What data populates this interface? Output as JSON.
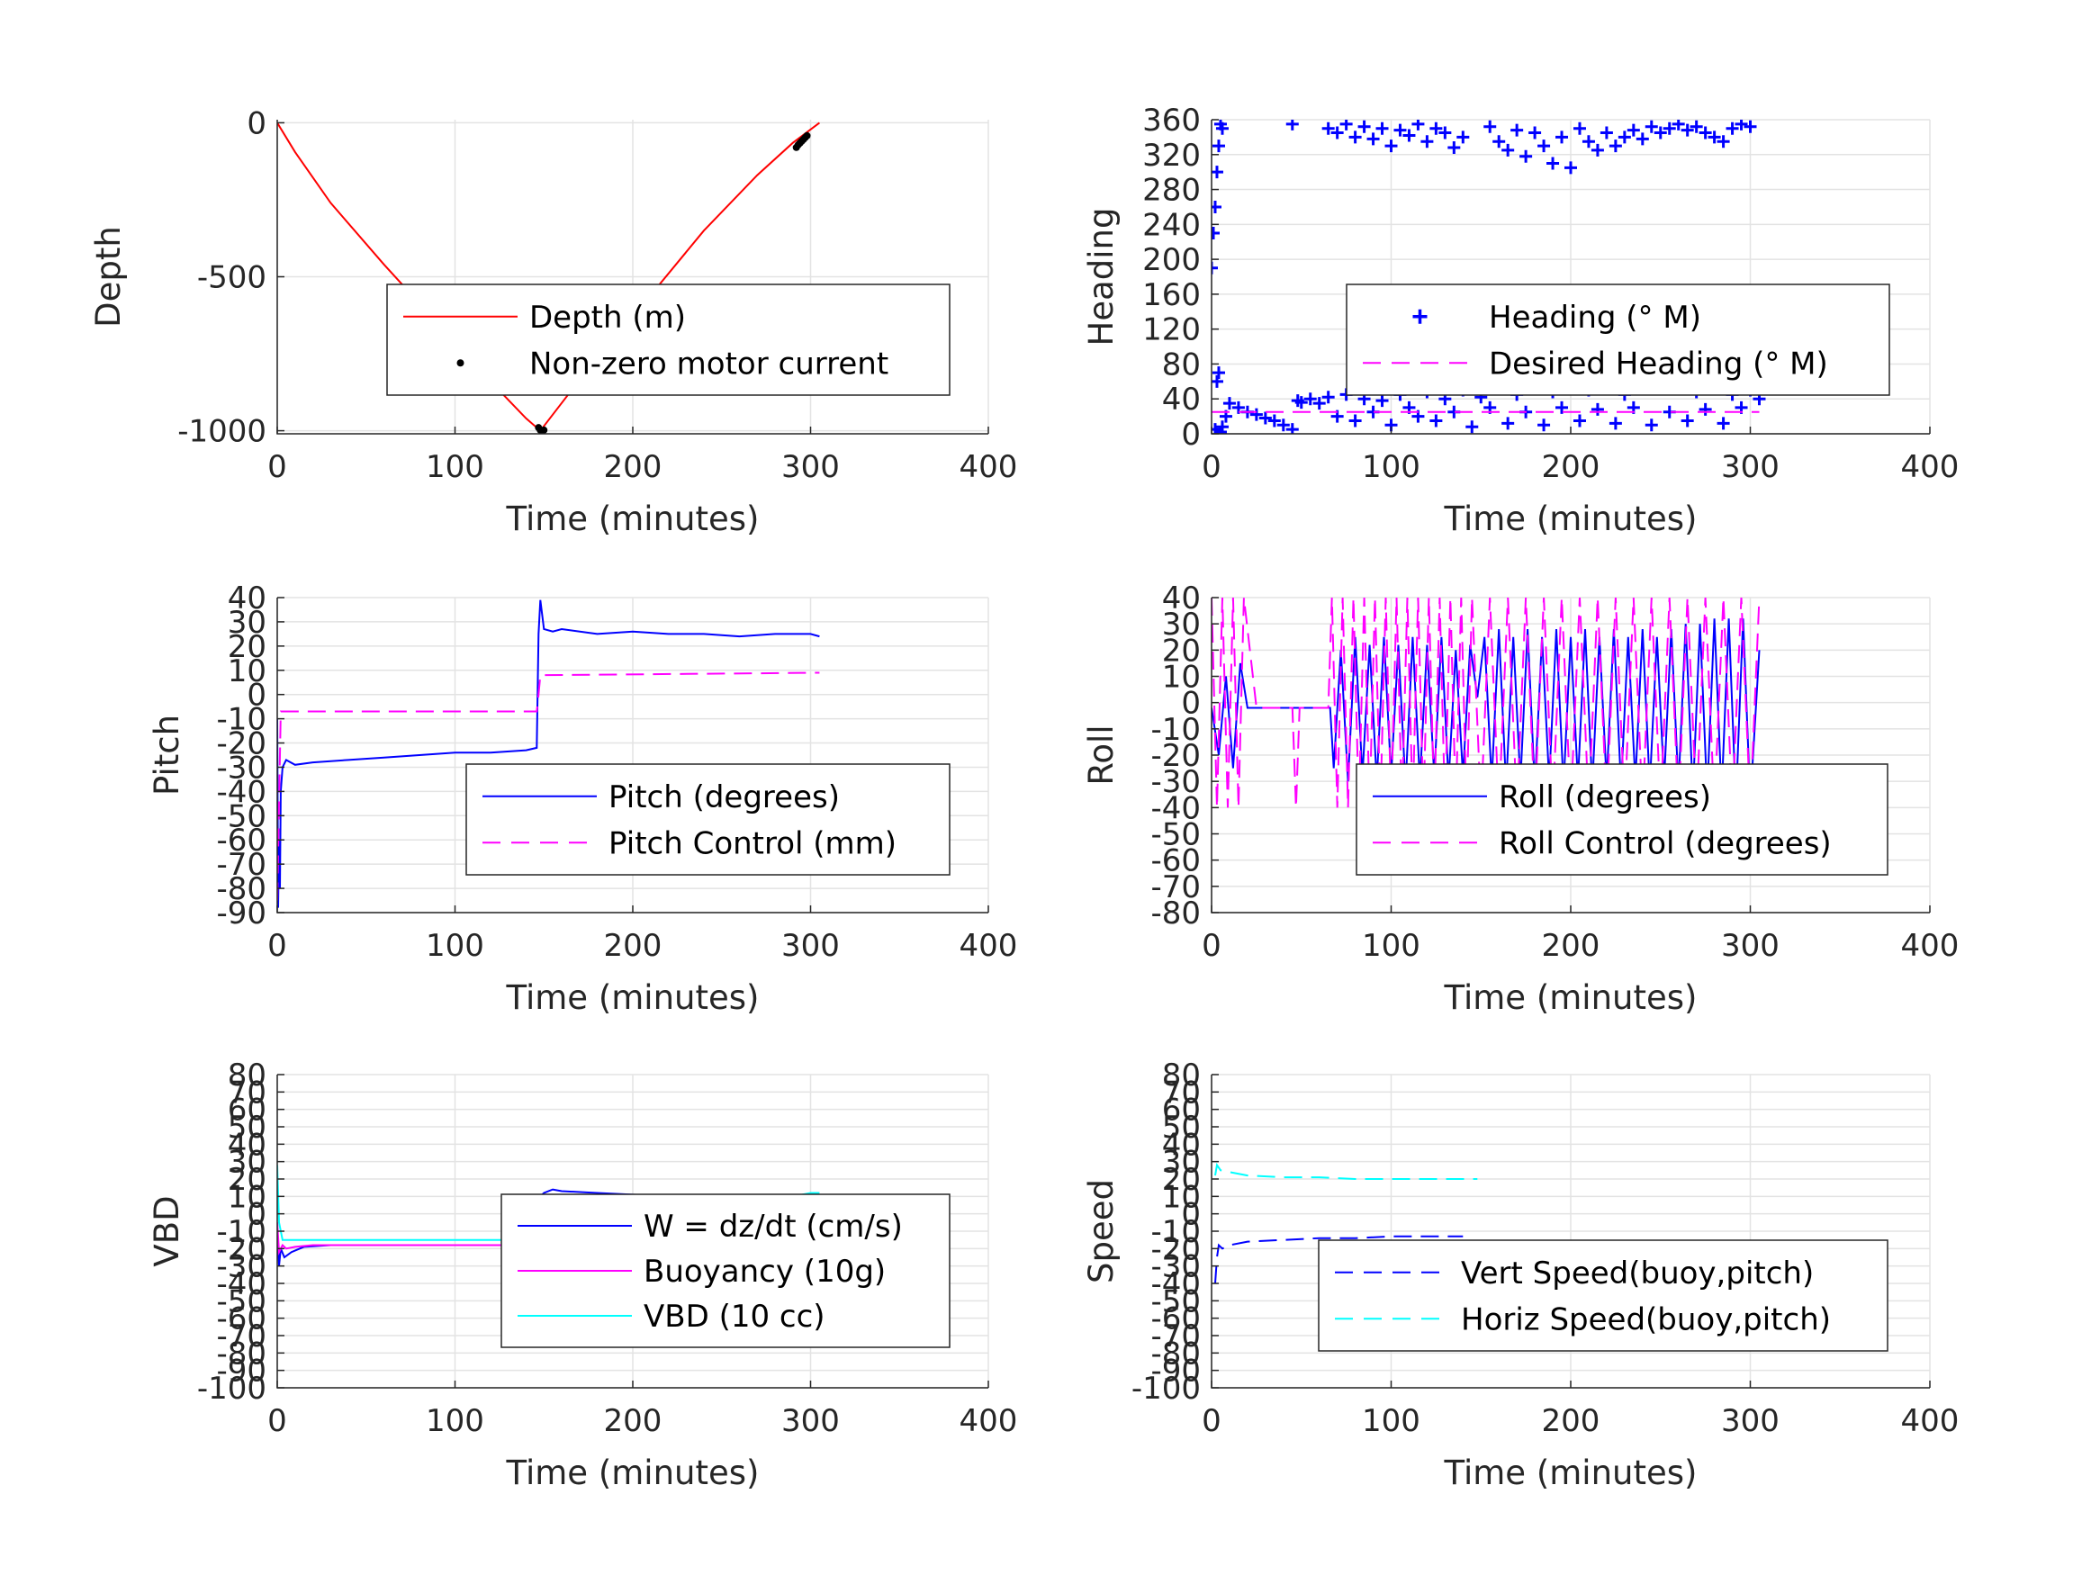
{
  "figure": {
    "background": "#ffffff",
    "grid_color": "#e3e3e3",
    "axis_color": "#262626"
  },
  "chart_data": [
    {
      "id": "depth",
      "type": "line",
      "xlabel": "Time (minutes)",
      "ylabel": "Depth",
      "xlim": [
        0,
        400
      ],
      "ylim": [
        -1010,
        10
      ],
      "xticks": [
        0,
        100,
        200,
        300,
        400
      ],
      "yticks": [
        -1000,
        -500,
        0
      ],
      "grid": true,
      "legend": {
        "placement": "lower-right"
      },
      "series": [
        {
          "name": "Depth (m)",
          "style": "line",
          "color": "#ff0000",
          "x": [
            0,
            10,
            30,
            60,
            90,
            120,
            140,
            148,
            160,
            180,
            210,
            240,
            270,
            290,
            305
          ],
          "y": [
            0,
            -95,
            -260,
            -460,
            -650,
            -840,
            -960,
            -1000,
            -910,
            -760,
            -560,
            -350,
            -170,
            -65,
            0
          ]
        },
        {
          "name": "Non-zero motor current",
          "style": "dots",
          "color": "#000000",
          "x": [
            147,
            148,
            149,
            150,
            292,
            293,
            294,
            295,
            296,
            297,
            298
          ],
          "y": [
            -990,
            -998,
            -1000,
            -998,
            -80,
            -72,
            -66,
            -60,
            -54,
            -48,
            -42
          ]
        }
      ]
    },
    {
      "id": "heading",
      "type": "scatter",
      "xlabel": "Time (minutes)",
      "ylabel": "Heading",
      "xlim": [
        0,
        400
      ],
      "ylim": [
        0,
        360
      ],
      "xticks": [
        0,
        100,
        200,
        300,
        400
      ],
      "yticks": [
        0,
        40,
        80,
        120,
        160,
        200,
        240,
        280,
        320,
        360
      ],
      "grid": true,
      "legend": {
        "placement": "right"
      },
      "series": [
        {
          "name": "Heading (° M)",
          "style": "plus",
          "color": "#0000ff",
          "x": [
            0,
            1,
            2,
            3,
            4,
            5,
            6,
            8,
            10,
            15,
            20,
            25,
            30,
            35,
            40,
            45,
            48,
            50,
            55,
            60,
            65,
            70,
            75,
            80,
            85,
            90,
            95,
            100,
            105,
            110,
            115,
            120,
            125,
            130,
            135,
            140,
            145,
            150,
            155,
            160,
            165,
            170,
            175,
            180,
            185,
            190,
            195,
            200,
            205,
            210,
            215,
            220,
            225,
            230,
            235,
            240,
            245,
            250,
            255,
            260,
            265,
            270,
            275,
            280,
            285,
            290,
            295,
            300,
            305,
            45,
            65,
            70,
            75,
            80,
            85,
            90,
            95,
            100,
            105,
            110,
            115,
            120,
            125,
            130,
            135,
            140,
            155,
            160,
            165,
            170,
            175,
            180,
            185,
            190,
            195,
            200,
            205,
            210,
            215,
            220,
            225,
            230,
            235,
            240,
            245,
            250,
            255,
            260,
            265,
            270,
            275,
            280,
            285,
            290,
            295,
            300,
            2,
            3,
            4,
            5,
            6
          ],
          "y": [
            190,
            230,
            260,
            300,
            330,
            355,
            350,
            20,
            35,
            30,
            25,
            22,
            18,
            15,
            10,
            5,
            38,
            36,
            40,
            35,
            42,
            20,
            45,
            15,
            40,
            25,
            38,
            10,
            45,
            30,
            20,
            48,
            15,
            40,
            25,
            50,
            8,
            42,
            30,
            55,
            12,
            45,
            25,
            60,
            10,
            48,
            30,
            62,
            15,
            50,
            28,
            55,
            12,
            45,
            30,
            58,
            10,
            52,
            25,
            60,
            15,
            48,
            28,
            55,
            12,
            45,
            30,
            50,
            40,
            355,
            350,
            345,
            355,
            340,
            352,
            338,
            350,
            330,
            348,
            342,
            355,
            335,
            350,
            345,
            328,
            340,
            352,
            335,
            325,
            348,
            318,
            345,
            330,
            310,
            340,
            305,
            350,
            335,
            325,
            345,
            330,
            340,
            348,
            338,
            352,
            345,
            350,
            355,
            348,
            352,
            345,
            340,
            335,
            350,
            355,
            352,
            5,
            60,
            70,
            2,
            8
          ]
        },
        {
          "name": "Desired Heading (° M)",
          "style": "dash",
          "color": "#ff00ff",
          "x": [
            0,
            305
          ],
          "y": [
            25,
            25
          ]
        }
      ]
    },
    {
      "id": "pitch",
      "type": "line",
      "xlabel": "Time (minutes)",
      "ylabel": "Pitch",
      "xlim": [
        0,
        400
      ],
      "ylim": [
        -90,
        40
      ],
      "xticks": [
        0,
        100,
        200,
        300,
        400
      ],
      "yticks": [
        -90,
        -80,
        -70,
        -60,
        -50,
        -40,
        -30,
        -20,
        -10,
        0,
        10,
        20,
        30,
        40
      ],
      "grid": true,
      "legend": {
        "placement": "lower-right"
      },
      "series": [
        {
          "name": "Pitch (degrees)",
          "style": "line",
          "color": "#0000ff",
          "x": [
            0,
            0.5,
            1,
            1.5,
            2,
            3,
            5,
            10,
            20,
            40,
            60,
            80,
            100,
            120,
            140,
            146,
            147,
            148,
            150,
            155,
            160,
            180,
            200,
            220,
            240,
            260,
            280,
            300,
            305
          ],
          "y": [
            -10,
            -88,
            -60,
            -80,
            -40,
            -30,
            -27,
            -29,
            -28,
            -27,
            -26,
            -25,
            -24,
            -24,
            -23,
            -22,
            25,
            39,
            27,
            26,
            27,
            25,
            26,
            25,
            25,
            24,
            25,
            25,
            24
          ]
        },
        {
          "name": "Pitch Control (mm)",
          "style": "dash",
          "color": "#ff00ff",
          "x": [
            0,
            1,
            2,
            145,
            146,
            147,
            148,
            305
          ],
          "y": [
            -85,
            -45,
            -7,
            -7,
            -7,
            0,
            8,
            9
          ]
        }
      ]
    },
    {
      "id": "roll",
      "type": "line",
      "xlabel": "Time (minutes)",
      "ylabel": "Roll",
      "xlim": [
        0,
        400
      ],
      "ylim": [
        -80,
        40
      ],
      "xticks": [
        0,
        100,
        200,
        300,
        400
      ],
      "yticks": [
        -80,
        -70,
        -60,
        -50,
        -40,
        -30,
        -20,
        -10,
        0,
        10,
        20,
        30,
        40
      ],
      "grid": true,
      "legend": {
        "placement": "lower-right"
      },
      "series": [
        {
          "name": "Roll (degrees)",
          "style": "line",
          "color": "#0000ff",
          "x": [
            0,
            4,
            8,
            12,
            16,
            20,
            25,
            30,
            40,
            48,
            50,
            60,
            66,
            68,
            72,
            76,
            80,
            84,
            88,
            92,
            96,
            100,
            104,
            108,
            112,
            116,
            120,
            124,
            128,
            132,
            136,
            140,
            144,
            148,
            152,
            156,
            160,
            164,
            168,
            172,
            176,
            180,
            184,
            188,
            192,
            196,
            200,
            204,
            208,
            212,
            216,
            220,
            224,
            228,
            232,
            236,
            240,
            244,
            248,
            252,
            256,
            260,
            264,
            268,
            272,
            276,
            280,
            284,
            288,
            292,
            296,
            300,
            305
          ],
          "y": [
            -2,
            -20,
            10,
            -25,
            15,
            -2,
            -2,
            -2,
            -2,
            -2,
            -2,
            -2,
            -2,
            -25,
            20,
            -30,
            25,
            -28,
            22,
            -30,
            25,
            -28,
            22,
            -32,
            25,
            -30,
            22,
            -28,
            25,
            -30,
            20,
            -28,
            22,
            2,
            25,
            -30,
            28,
            -32,
            25,
            -30,
            28,
            -32,
            25,
            -30,
            28,
            -32,
            25,
            -30,
            28,
            -32,
            25,
            -30,
            28,
            -32,
            25,
            -30,
            28,
            -32,
            25,
            -30,
            28,
            -32,
            30,
            -35,
            30,
            -35,
            32,
            -35,
            32,
            -38,
            32,
            -38,
            20
          ]
        },
        {
          "name": "Roll Control (degrees)",
          "style": "dash",
          "color": "#ff00ff",
          "x": [
            0,
            3,
            6,
            9,
            12,
            15,
            18,
            25,
            45,
            47,
            49,
            65,
            67,
            70,
            73,
            76,
            79,
            82,
            85,
            88,
            91,
            94,
            97,
            100,
            103,
            106,
            109,
            112,
            115,
            118,
            121,
            124,
            127,
            130,
            133,
            136,
            139,
            142,
            145,
            150,
            155,
            160,
            165,
            170,
            175,
            180,
            185,
            190,
            195,
            200,
            205,
            210,
            215,
            220,
            225,
            230,
            235,
            240,
            245,
            250,
            255,
            260,
            265,
            270,
            275,
            280,
            285,
            290,
            295,
            300,
            305
          ],
          "y": [
            40,
            -40,
            40,
            -40,
            40,
            -40,
            40,
            -2,
            -2,
            -40,
            -2,
            -2,
            40,
            -40,
            40,
            -40,
            40,
            -40,
            40,
            -40,
            40,
            -40,
            40,
            -40,
            40,
            -40,
            40,
            -40,
            40,
            -40,
            40,
            -40,
            40,
            -40,
            40,
            -40,
            40,
            -40,
            40,
            -40,
            40,
            -40,
            40,
            -40,
            40,
            -40,
            40,
            -40,
            40,
            -40,
            40,
            -40,
            40,
            -40,
            40,
            -40,
            40,
            -40,
            40,
            -40,
            40,
            -40,
            40,
            -40,
            40,
            -40,
            40,
            -40,
            40,
            -40,
            40
          ]
        }
      ]
    },
    {
      "id": "vbd",
      "type": "line",
      "xlabel": "Time (minutes)",
      "ylabel": "VBD",
      "xlim": [
        0,
        400
      ],
      "ylim": [
        -100,
        80
      ],
      "xticks": [
        0,
        100,
        200,
        300,
        400
      ],
      "yticks": [
        -100,
        -90,
        -80,
        -70,
        -60,
        -50,
        -40,
        -30,
        -20,
        -10,
        0,
        10,
        20,
        30,
        40,
        50,
        60,
        70,
        80
      ],
      "grid": true,
      "legend": {
        "placement": "lower-right"
      },
      "series": [
        {
          "name": "W = dz/dt (cm/s)",
          "style": "line",
          "color": "#0000ff",
          "x": [
            0,
            1,
            2,
            4,
            8,
            15,
            30,
            60,
            90,
            120,
            145,
            147,
            148,
            150,
            155,
            160,
            180,
            200,
            230,
            260,
            290,
            300,
            305
          ],
          "y": [
            -10,
            -30,
            -20,
            -25,
            -22,
            -19,
            -18,
            -18,
            -18,
            -18,
            -18,
            -5,
            10,
            12,
            14,
            13,
            12,
            11,
            10,
            9,
            8,
            8,
            8
          ]
        },
        {
          "name": "Buoyancy (10g)",
          "style": "line",
          "color": "#ff00ff",
          "x": [
            0,
            1,
            3,
            5,
            10,
            20,
            60,
            120,
            145,
            147,
            150,
            200,
            250,
            300,
            305
          ],
          "y": [
            -5,
            -22,
            -18,
            -20,
            -19,
            -18,
            -18,
            -18,
            -18,
            5,
            10,
            10,
            10,
            10,
            10
          ]
        },
        {
          "name": "VBD (10 cc)",
          "style": "line",
          "color": "#00ffff",
          "x": [
            0,
            1,
            3,
            10,
            20,
            60,
            120,
            145,
            147,
            150,
            200,
            250,
            290,
            300,
            305
          ],
          "y": [
            28,
            -5,
            -15,
            -15,
            -15,
            -15,
            -15,
            -15,
            0,
            10,
            10,
            10,
            10,
            12,
            12
          ]
        }
      ]
    },
    {
      "id": "speed",
      "type": "line",
      "xlabel": "Time (minutes)",
      "ylabel": "Speed",
      "xlim": [
        0,
        400
      ],
      "ylim": [
        -100,
        80
      ],
      "xticks": [
        0,
        100,
        200,
        300,
        400
      ],
      "yticks": [
        -100,
        -90,
        -80,
        -70,
        -60,
        -50,
        -40,
        -30,
        -20,
        -10,
        0,
        10,
        20,
        30,
        40,
        50,
        60,
        70,
        80
      ],
      "grid": true,
      "legend": {
        "placement": "lower-right"
      },
      "series": [
        {
          "name": "Vert Speed(buoy,pitch)",
          "style": "dash",
          "color": "#0000ff",
          "x": [
            2,
            3,
            4,
            6,
            10,
            20,
            40,
            60,
            80,
            100,
            120,
            140
          ],
          "y": [
            -40,
            -25,
            -18,
            -20,
            -18,
            -16,
            -15,
            -14,
            -14,
            -13,
            -13,
            -13
          ]
        },
        {
          "name": "Horiz Speed(buoy,pitch)",
          "style": "dash",
          "color": "#00ffff",
          "x": [
            2,
            3,
            5,
            10,
            20,
            40,
            60,
            80,
            100,
            120,
            140,
            148
          ],
          "y": [
            22,
            28,
            25,
            24,
            22,
            21,
            21,
            20,
            20,
            20,
            20,
            20
          ]
        }
      ]
    }
  ]
}
